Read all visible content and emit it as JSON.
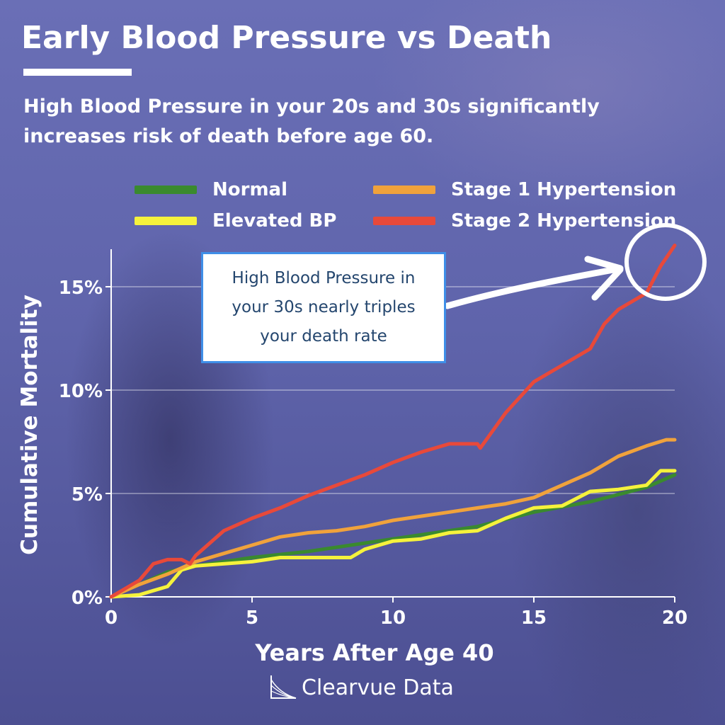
{
  "title": "Early Blood Pressure vs Death",
  "subtitle": "High Blood Pressure in your 20s and 30s significantly increases risk of death before age 60.",
  "callout": "High Blood Pressure in your 30s nearly triples your death rate",
  "brand": "Clearvue Data",
  "colors": {
    "normal": "#3a8a2e",
    "elevated": "#f5f23c",
    "stage1": "#f0a23c",
    "stage2": "#e8493a"
  },
  "chart_data": {
    "type": "line",
    "title": "Early Blood Pressure vs Death",
    "xlabel": "Years After Age 40",
    "ylabel": "Cumulative Mortality",
    "xlim": [
      0,
      20
    ],
    "ylim": [
      0,
      17
    ],
    "x_ticks": [
      0,
      5,
      10,
      15,
      20
    ],
    "x_tick_labels": [
      "0",
      "5",
      "10",
      "15",
      "20"
    ],
    "y_ticks": [
      0,
      5,
      10,
      15
    ],
    "y_tick_labels": [
      "0%",
      "5%",
      "10%",
      "15%"
    ],
    "grid": true,
    "legend_position": "top",
    "series": [
      {
        "name": "Normal",
        "color_key": "normal",
        "x": [
          0,
          1,
          2,
          3,
          5,
          7,
          9,
          11,
          13,
          15,
          17,
          19,
          20
        ],
        "y": [
          0,
          0.6,
          1.2,
          1.5,
          1.9,
          2.2,
          2.6,
          3.0,
          3.4,
          4.1,
          4.6,
          5.3,
          5.9
        ]
      },
      {
        "name": "Elevated BP",
        "color_key": "elevated",
        "x": [
          0,
          1,
          1.5,
          2,
          2.5,
          3,
          5,
          6,
          8.5,
          9,
          10,
          11,
          12,
          13,
          14,
          15,
          16,
          17,
          18,
          19,
          19.5,
          20
        ],
        "y": [
          0,
          0.1,
          0.3,
          0.5,
          1.3,
          1.5,
          1.7,
          1.9,
          1.9,
          2.3,
          2.7,
          2.8,
          3.1,
          3.2,
          3.8,
          4.3,
          4.4,
          5.1,
          5.2,
          5.4,
          6.1,
          6.1
        ]
      },
      {
        "name": "Stage 1 Hypertension",
        "color_key": "stage1",
        "x": [
          0,
          1,
          2,
          3,
          4,
          5,
          6,
          7,
          8,
          9,
          10,
          11,
          12,
          13,
          14,
          15,
          16,
          17,
          18,
          19,
          19.7,
          20
        ],
        "y": [
          0,
          0.6,
          1.1,
          1.7,
          2.1,
          2.5,
          2.9,
          3.1,
          3.2,
          3.4,
          3.7,
          3.9,
          4.1,
          4.3,
          4.5,
          4.8,
          5.4,
          6.0,
          6.8,
          7.3,
          7.6,
          7.6
        ]
      },
      {
        "name": "Stage 2 Hypertension",
        "color_key": "stage2",
        "x": [
          0,
          1,
          1.5,
          2,
          2.5,
          2.8,
          3,
          3.5,
          4,
          5,
          6,
          7,
          8,
          9,
          10,
          11,
          12,
          13,
          13.1,
          14,
          15,
          16,
          17,
          17.5,
          18,
          19,
          19.5,
          20
        ],
        "y": [
          0,
          0.8,
          1.6,
          1.8,
          1.8,
          1.6,
          2.0,
          2.6,
          3.2,
          3.8,
          4.3,
          4.9,
          5.4,
          5.9,
          6.5,
          7.0,
          7.4,
          7.4,
          7.2,
          8.9,
          10.4,
          11.2,
          12.0,
          13.2,
          13.9,
          14.7,
          16.0,
          17.0
        ]
      }
    ]
  }
}
